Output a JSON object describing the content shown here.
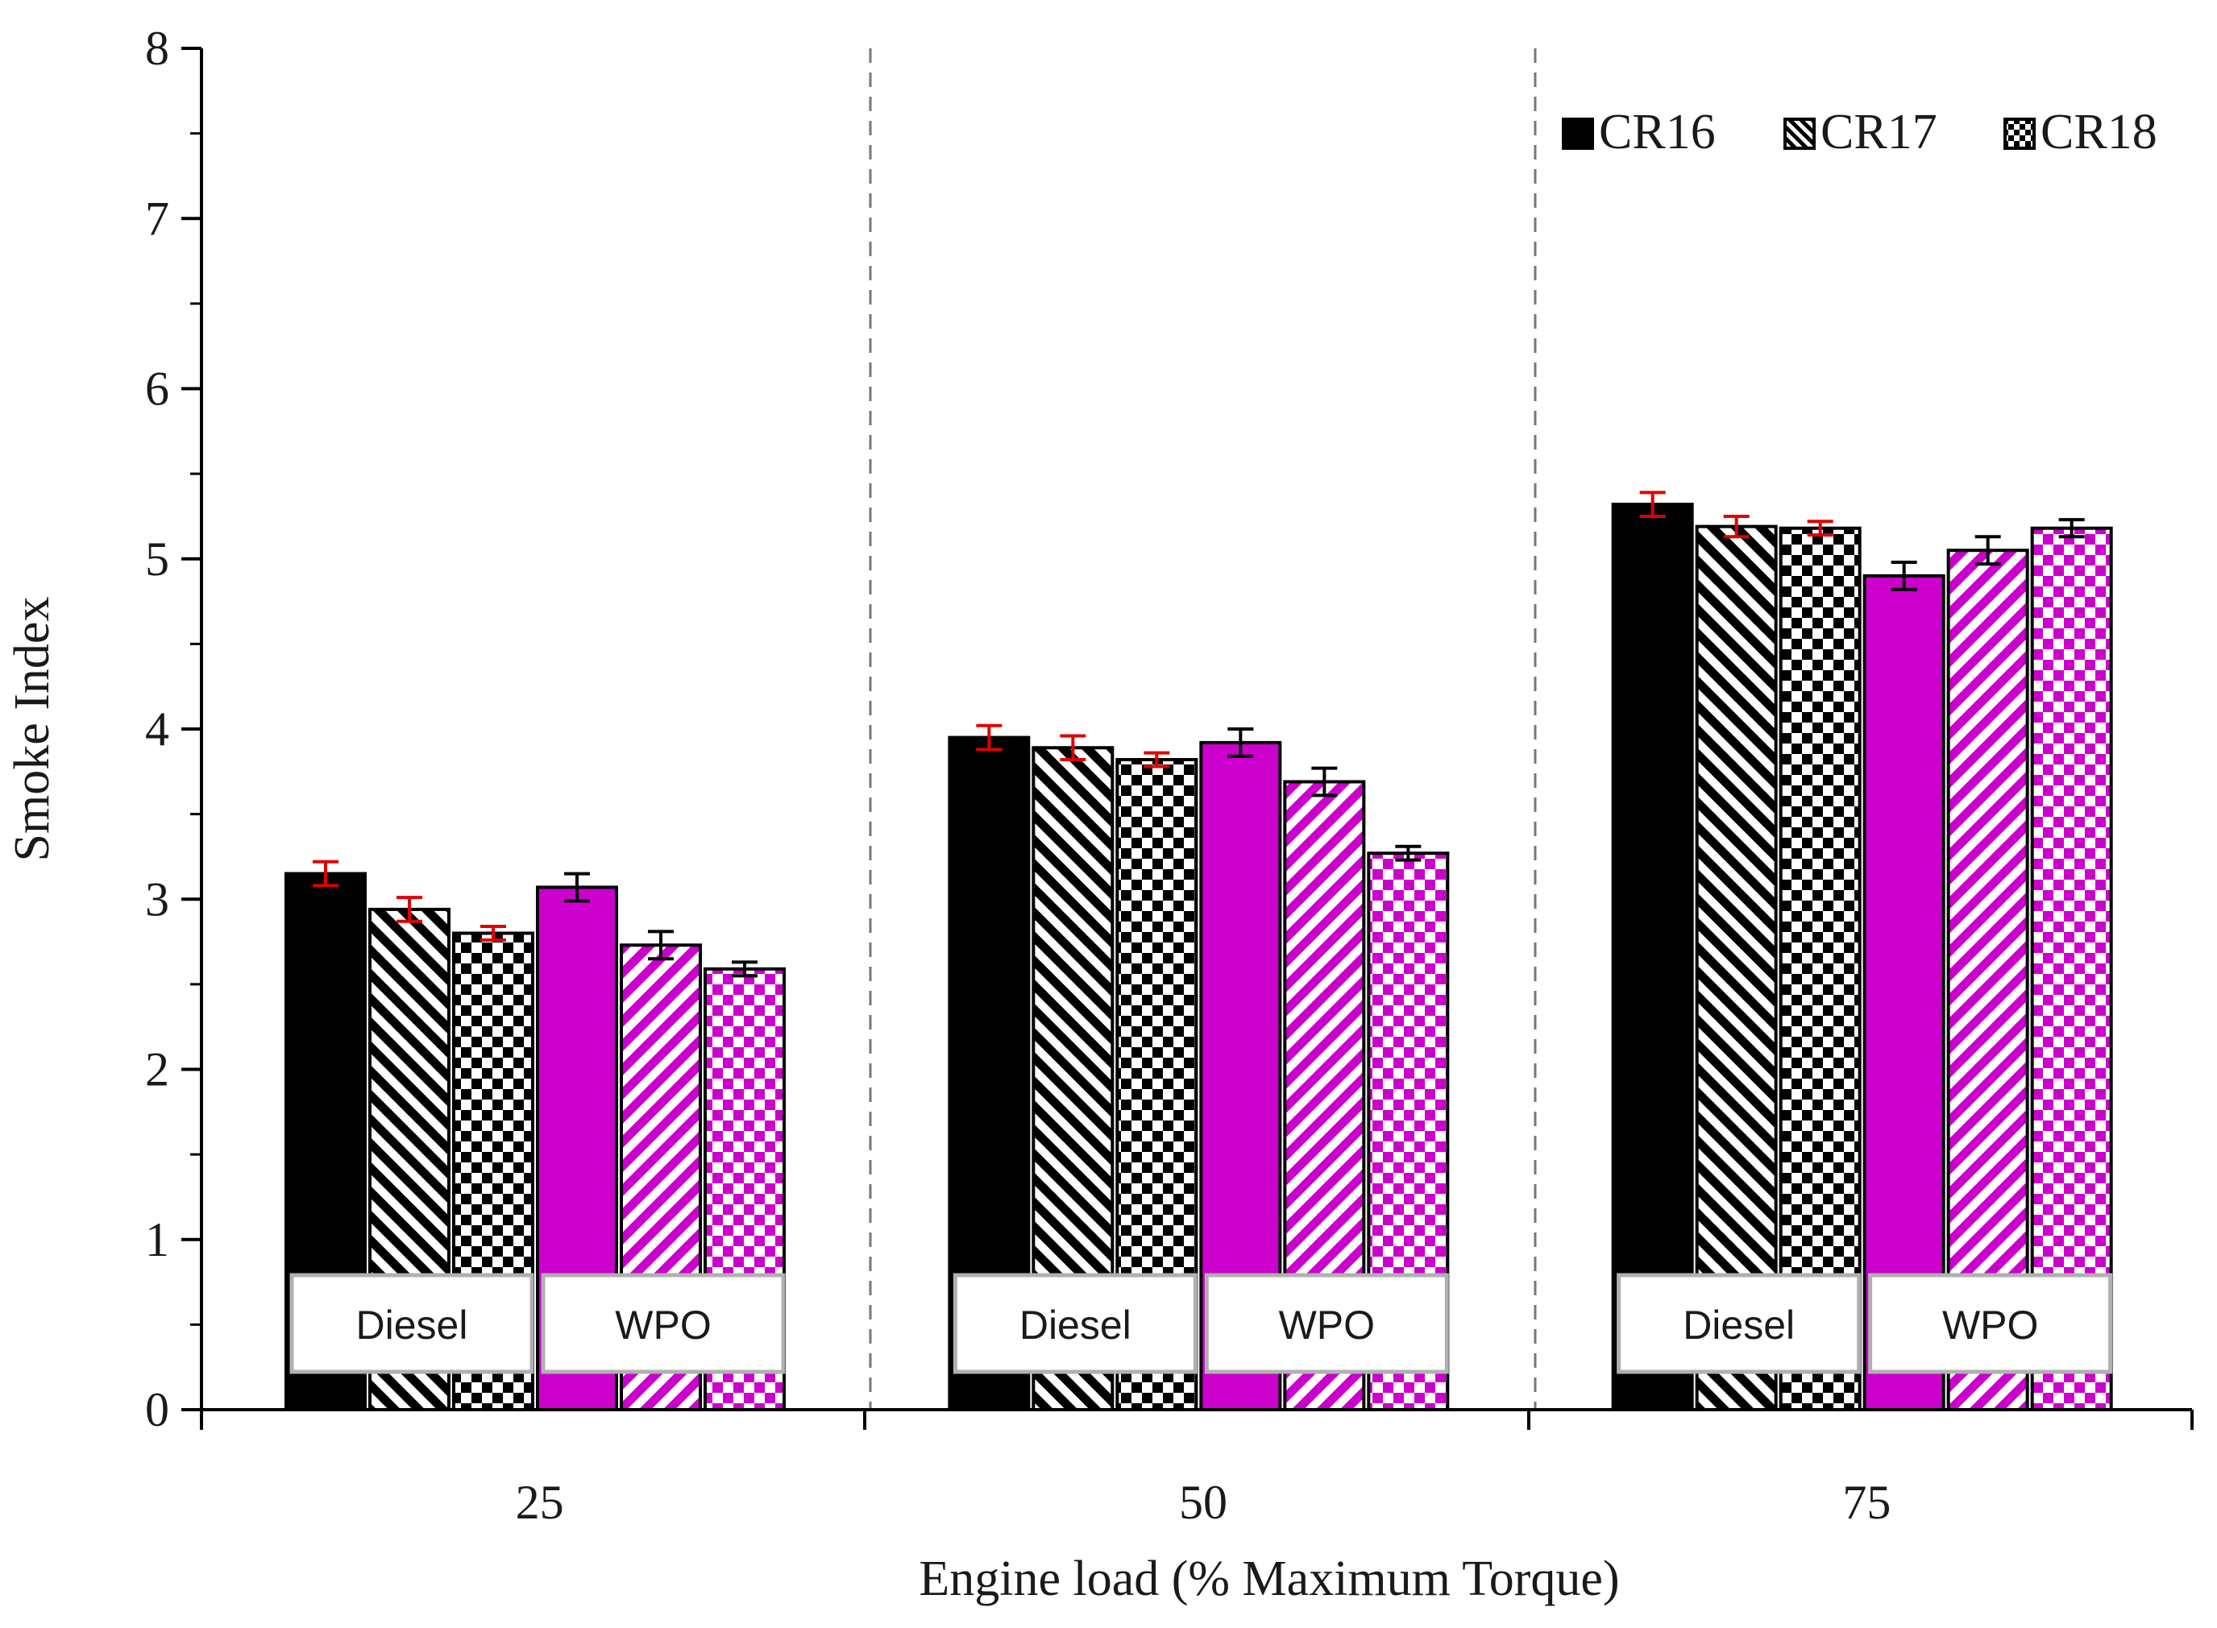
{
  "chart_data": {
    "type": "bar",
    "title": "",
    "xlabel": "Engine load (% Maximum Torque)",
    "ylabel": "Smoke Index",
    "ylim": [
      0,
      8
    ],
    "yticks": [
      "0",
      "1",
      "2",
      "3",
      "4",
      "5",
      "6",
      "7",
      "8"
    ],
    "categories": [
      "25",
      "50",
      "75"
    ],
    "fuels": [
      "Diesel",
      "WPO"
    ],
    "legend": {
      "placement": "top-right",
      "entries": [
        "CR16",
        "CR17",
        "CR18"
      ]
    },
    "grid": false,
    "category_separators": "dashed",
    "series": [
      {
        "name": "CR16",
        "fuel": "Diesel",
        "pattern": "solid",
        "color": "#000000",
        "error_color": "#e00000",
        "values": [
          3.15,
          3.95,
          5.32
        ],
        "errors": [
          0.07,
          0.07,
          0.07
        ]
      },
      {
        "name": "CR17",
        "fuel": "Diesel",
        "pattern": "diagonal-stripes",
        "color": "#000000",
        "error_color": "#e00000",
        "values": [
          2.94,
          3.89,
          5.19
        ],
        "errors": [
          0.07,
          0.07,
          0.06
        ]
      },
      {
        "name": "CR18",
        "fuel": "Diesel",
        "pattern": "checker",
        "color": "#000000",
        "error_color": "#e00000",
        "values": [
          2.8,
          3.82,
          5.18
        ],
        "errors": [
          0.04,
          0.04,
          0.04
        ]
      },
      {
        "name": "CR16",
        "fuel": "WPO",
        "pattern": "solid",
        "color": "#cc00cc",
        "error_color": "#000000",
        "values": [
          3.07,
          3.92,
          4.9
        ],
        "errors": [
          0.08,
          0.08,
          0.08
        ]
      },
      {
        "name": "CR17",
        "fuel": "WPO",
        "pattern": "diagonal-stripes",
        "color": "#cc00cc",
        "error_color": "#000000",
        "values": [
          2.73,
          3.69,
          5.05
        ],
        "errors": [
          0.08,
          0.08,
          0.08
        ]
      },
      {
        "name": "CR18",
        "fuel": "WPO",
        "pattern": "checker",
        "color": "#cc00cc",
        "error_color": "#000000",
        "values": [
          2.59,
          3.27,
          5.18
        ],
        "errors": [
          0.04,
          0.04,
          0.05
        ]
      }
    ]
  }
}
